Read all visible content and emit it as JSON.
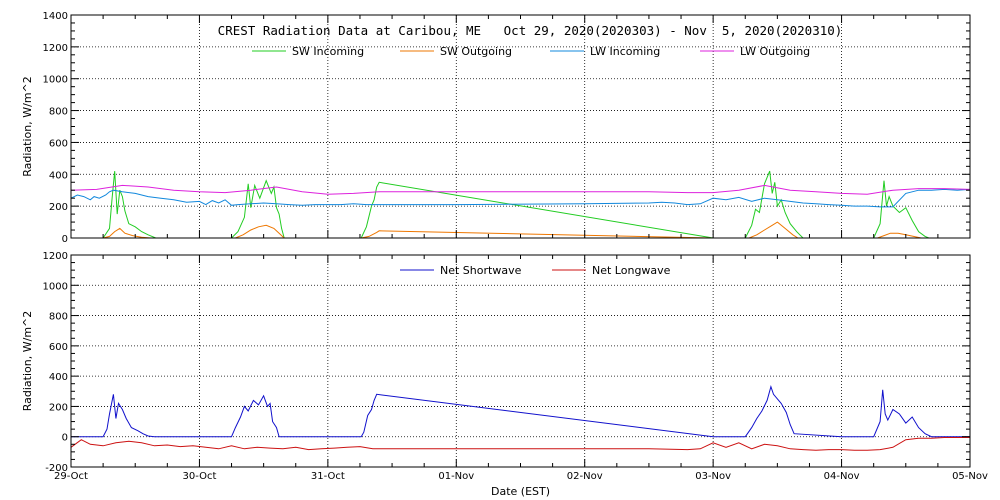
{
  "chart_data": [
    {
      "type": "line",
      "title": "CREST Radiation Data at Caribou, ME   Oct 29, 2020(2020303) - Nov  5, 2020(2020310)",
      "ylabel": "Radiation, W/m^2",
      "xlabel": "",
      "ylim": [
        0,
        1400
      ],
      "yticks": [
        0,
        200,
        400,
        600,
        800,
        1000,
        1200,
        1400
      ],
      "xlim": [
        0,
        7
      ],
      "xticks": [
        0,
        1,
        2,
        3,
        4,
        5,
        6,
        7
      ],
      "xticklabels": [],
      "grid": true,
      "legend": "top-center",
      "series": [
        {
          "name": "SW Incoming",
          "color": "#22cc22",
          "x": [
            0.0,
            0.15,
            0.25,
            0.3,
            0.32,
            0.34,
            0.36,
            0.38,
            0.4,
            0.42,
            0.45,
            0.5,
            0.55,
            0.6,
            0.66,
            0.7,
            1.0,
            1.25,
            1.3,
            1.35,
            1.38,
            1.4,
            1.43,
            1.47,
            1.52,
            1.56,
            1.58,
            1.6,
            1.62,
            1.64,
            1.66,
            1.7,
            2.0,
            2.26,
            2.3,
            2.34,
            2.36,
            2.38,
            2.4,
            5.0,
            5.0,
            5.25,
            5.3,
            5.33,
            5.36,
            5.4,
            5.44,
            5.46,
            5.48,
            5.5,
            5.53,
            5.56,
            5.6,
            5.65,
            5.7,
            6.0,
            6.25,
            6.3,
            6.33,
            6.35,
            6.37,
            6.4,
            6.45,
            6.5,
            6.55,
            6.6,
            6.65,
            6.68,
            7.0
          ],
          "values": [
            0,
            0,
            0,
            60,
            250,
            420,
            150,
            300,
            260,
            170,
            90,
            70,
            40,
            20,
            0,
            0,
            0,
            0,
            40,
            130,
            340,
            190,
            330,
            250,
            360,
            280,
            320,
            190,
            150,
            60,
            0,
            0,
            0,
            0,
            70,
            200,
            240,
            320,
            350,
            0,
            0,
            0,
            80,
            180,
            160,
            340,
            420,
            280,
            350,
            200,
            240,
            160,
            90,
            40,
            0,
            0,
            0,
            90,
            360,
            200,
            260,
            200,
            160,
            190,
            110,
            40,
            10,
            0,
            0
          ]
        },
        {
          "name": "SW Outgoing",
          "color": "#ee7700",
          "x": [
            0.0,
            0.25,
            0.3,
            0.34,
            0.38,
            0.42,
            0.48,
            0.55,
            0.62,
            0.66,
            1.0,
            1.28,
            1.34,
            1.4,
            1.46,
            1.52,
            1.58,
            1.62,
            1.66,
            2.0,
            2.26,
            2.32,
            2.38,
            2.4,
            5.0,
            5.0,
            5.28,
            5.34,
            5.4,
            5.46,
            5.5,
            5.56,
            5.62,
            5.66,
            6.0,
            6.28,
            6.33,
            6.38,
            6.44,
            6.5,
            6.56,
            6.62,
            6.66,
            7.0
          ],
          "values": [
            0,
            0,
            10,
            40,
            60,
            30,
            15,
            5,
            0,
            0,
            0,
            0,
            20,
            50,
            70,
            80,
            60,
            30,
            0,
            0,
            0,
            10,
            35,
            45,
            0,
            0,
            0,
            20,
            50,
            80,
            100,
            60,
            20,
            0,
            0,
            0,
            15,
            30,
            30,
            20,
            10,
            0,
            0,
            0
          ]
        },
        {
          "name": "LW Incoming",
          "color": "#1188dd",
          "x": [
            0.0,
            0.05,
            0.1,
            0.15,
            0.18,
            0.22,
            0.27,
            0.3,
            0.33,
            0.4,
            0.5,
            0.6,
            0.7,
            0.8,
            0.9,
            1.0,
            1.05,
            1.1,
            1.15,
            1.2,
            1.25,
            1.3,
            1.4,
            1.5,
            1.6,
            1.7,
            1.8,
            1.9,
            2.0,
            2.1,
            2.2,
            2.3,
            2.4,
            3.0,
            4.0,
            4.5,
            4.6,
            4.7,
            4.8,
            4.9,
            5.0,
            5.1,
            5.2,
            5.3,
            5.4,
            5.5,
            5.6,
            5.7,
            5.8,
            5.9,
            6.0,
            6.1,
            6.2,
            6.3,
            6.4,
            6.5,
            6.6,
            6.7,
            6.8,
            6.9,
            7.0
          ],
          "values": [
            250,
            270,
            260,
            240,
            260,
            250,
            270,
            290,
            300,
            290,
            280,
            260,
            250,
            240,
            225,
            230,
            210,
            235,
            220,
            240,
            205,
            210,
            215,
            220,
            215,
            210,
            205,
            210,
            210,
            210,
            215,
            210,
            210,
            210,
            215,
            220,
            225,
            220,
            210,
            215,
            250,
            240,
            255,
            230,
            250,
            240,
            230,
            220,
            215,
            210,
            205,
            200,
            200,
            195,
            195,
            280,
            300,
            300,
            305,
            300,
            305
          ]
        },
        {
          "name": "LW Outgoing",
          "color": "#dd22dd",
          "x": [
            0.0,
            0.2,
            0.4,
            0.6,
            0.8,
            1.0,
            1.2,
            1.4,
            1.6,
            1.8,
            2.0,
            2.2,
            2.4,
            3.0,
            4.0,
            4.5,
            4.8,
            5.0,
            5.2,
            5.4,
            5.6,
            5.8,
            6.0,
            6.2,
            6.4,
            6.6,
            6.8,
            7.0
          ],
          "values": [
            300,
            305,
            330,
            320,
            300,
            290,
            285,
            300,
            320,
            290,
            275,
            280,
            290,
            290,
            290,
            290,
            285,
            285,
            300,
            330,
            300,
            290,
            280,
            275,
            300,
            310,
            310,
            305
          ]
        }
      ]
    },
    {
      "type": "line",
      "title": "",
      "ylabel": "Radiation, W/m^2",
      "xlabel": "Date (EST)",
      "ylim": [
        -200,
        1200
      ],
      "yticks": [
        -200,
        0,
        200,
        400,
        600,
        800,
        1000,
        1200
      ],
      "xlim": [
        0,
        7
      ],
      "xticks": [
        0,
        1,
        2,
        3,
        4,
        5,
        6,
        7
      ],
      "xticklabels": [
        "29-Oct",
        "30-Oct",
        "31-Oct",
        "01-Nov",
        "02-Nov",
        "03-Nov",
        "04-Nov",
        "05-Nov"
      ],
      "grid": true,
      "legend": "top-center",
      "series": [
        {
          "name": "Net Shortwave",
          "color": "#1111cc",
          "x": [
            0.0,
            0.2,
            0.25,
            0.28,
            0.3,
            0.33,
            0.35,
            0.37,
            0.4,
            0.43,
            0.47,
            0.52,
            0.56,
            0.6,
            0.65,
            1.0,
            1.25,
            1.28,
            1.32,
            1.35,
            1.38,
            1.42,
            1.46,
            1.5,
            1.53,
            1.55,
            1.57,
            1.6,
            1.62,
            2.0,
            2.26,
            2.28,
            2.31,
            2.34,
            2.36,
            2.38,
            5.0,
            5.0,
            5.25,
            5.3,
            5.34,
            5.38,
            5.42,
            5.45,
            5.47,
            5.5,
            5.53,
            5.57,
            5.6,
            5.63,
            6.0,
            6.25,
            6.3,
            6.32,
            6.34,
            6.36,
            6.4,
            6.45,
            6.5,
            6.55,
            6.6,
            6.65,
            6.7,
            7.0
          ],
          "values": [
            0,
            0,
            0,
            50,
            150,
            280,
            120,
            220,
            180,
            120,
            60,
            40,
            20,
            5,
            0,
            0,
            0,
            60,
            130,
            200,
            170,
            240,
            210,
            270,
            200,
            220,
            100,
            60,
            0,
            0,
            0,
            30,
            140,
            180,
            240,
            280,
            0,
            0,
            0,
            60,
            120,
            170,
            240,
            330,
            280,
            250,
            220,
            160,
            80,
            20,
            0,
            0,
            100,
            310,
            150,
            110,
            180,
            150,
            90,
            130,
            60,
            20,
            0,
            0
          ]
        },
        {
          "name": "Net Longwave",
          "color": "#cc1111",
          "x": [
            0.0,
            0.08,
            0.15,
            0.25,
            0.35,
            0.45,
            0.55,
            0.65,
            0.75,
            0.85,
            0.95,
            1.05,
            1.15,
            1.25,
            1.35,
            1.45,
            1.55,
            1.65,
            1.75,
            1.85,
            1.95,
            2.05,
            2.15,
            2.25,
            2.35,
            3.0,
            4.0,
            4.5,
            4.8,
            4.9,
            5.0,
            5.1,
            5.2,
            5.3,
            5.4,
            5.5,
            5.6,
            5.7,
            5.8,
            5.9,
            6.0,
            6.1,
            6.2,
            6.3,
            6.4,
            6.5,
            6.6,
            6.7,
            6.8,
            7.0
          ],
          "values": [
            -70,
            -20,
            -50,
            -60,
            -40,
            -30,
            -40,
            -60,
            -55,
            -65,
            -60,
            -70,
            -80,
            -60,
            -80,
            -70,
            -75,
            -80,
            -70,
            -85,
            -80,
            -75,
            -70,
            -65,
            -80,
            -80,
            -80,
            -80,
            -85,
            -80,
            -40,
            -70,
            -40,
            -80,
            -50,
            -60,
            -80,
            -85,
            -90,
            -85,
            -85,
            -90,
            -90,
            -85,
            -70,
            -20,
            -10,
            -10,
            -5,
            -5
          ]
        }
      ]
    }
  ]
}
